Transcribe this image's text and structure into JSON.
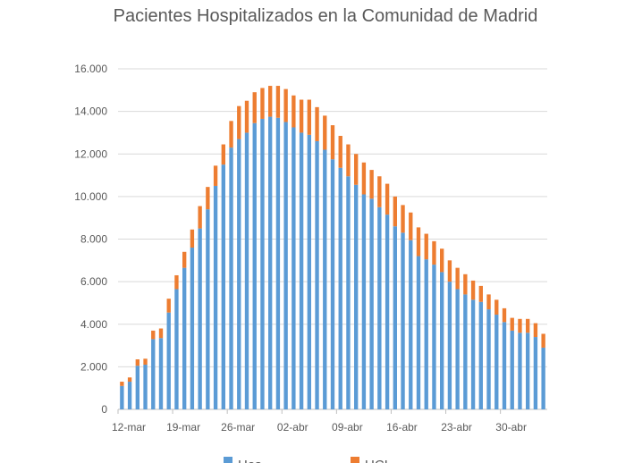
{
  "chart_data": {
    "type": "bar",
    "stacked": true,
    "title": "Pacientes Hospitalizados en la Comunidad de Madrid",
    "xlabel": "",
    "ylabel": "",
    "ylim": [
      0,
      16000
    ],
    "grid": true,
    "y_ticks": [
      "0",
      "2.000",
      "4.000",
      "6.000",
      "8.000",
      "10.000",
      "12.000",
      "14.000",
      "16.000"
    ],
    "y_tick_values": [
      0,
      2000,
      4000,
      6000,
      8000,
      10000,
      12000,
      14000,
      16000
    ],
    "x_tick_labels": [
      "12-mar",
      "19-mar",
      "26-mar",
      "02-abr",
      "09-abr",
      "16-abr",
      "23-abr",
      "30-abr"
    ],
    "categories": [
      "12-mar",
      "13-mar",
      "14-mar",
      "15-mar",
      "16-mar",
      "17-mar",
      "18-mar",
      "19-mar",
      "20-mar",
      "21-mar",
      "22-mar",
      "23-mar",
      "24-mar",
      "25-mar",
      "26-mar",
      "27-mar",
      "28-mar",
      "29-mar",
      "30-mar",
      "31-mar",
      "01-abr",
      "02-abr",
      "03-abr",
      "04-abr",
      "05-abr",
      "06-abr",
      "07-abr",
      "08-abr",
      "09-abr",
      "10-abr",
      "11-abr",
      "12-abr",
      "13-abr",
      "14-abr",
      "15-abr",
      "16-abr",
      "17-abr",
      "18-abr",
      "19-abr",
      "20-abr",
      "21-abr",
      "22-abr",
      "23-abr",
      "24-abr",
      "25-abr",
      "26-abr",
      "27-abr",
      "28-abr",
      "29-abr",
      "30-abr",
      "01-may",
      "02-may",
      "03-may",
      "04-may",
      "05-may"
    ],
    "series": [
      {
        "name": "Hos",
        "color": "#5b9bd5",
        "values": [
          1100,
          1300,
          2050,
          2100,
          3300,
          3350,
          4550,
          5650,
          6650,
          7600,
          8500,
          9400,
          10500,
          11500,
          12300,
          12700,
          13000,
          13450,
          13650,
          13750,
          13700,
          13500,
          13250,
          13000,
          12900,
          12600,
          12200,
          11750,
          11350,
          10950,
          10550,
          10100,
          9900,
          9500,
          9150,
          8600,
          8300,
          7950,
          7200,
          7050,
          6800,
          6450,
          6000,
          5650,
          5400,
          5150,
          5050,
          4700,
          4450,
          4100,
          3700,
          3600,
          3600,
          3400,
          2900
        ]
      },
      {
        "name": "UCI",
        "color": "#ed7d31",
        "values": [
          200,
          200,
          300,
          280,
          400,
          450,
          650,
          650,
          750,
          850,
          1050,
          1050,
          950,
          950,
          1250,
          1550,
          1500,
          1450,
          1450,
          1450,
          1500,
          1550,
          1500,
          1550,
          1650,
          1600,
          1600,
          1600,
          1500,
          1500,
          1450,
          1500,
          1350,
          1450,
          1450,
          1400,
          1300,
          1300,
          1350,
          1200,
          1100,
          1100,
          1000,
          1000,
          950,
          900,
          750,
          700,
          700,
          650,
          600,
          650,
          650,
          650,
          650
        ]
      }
    ],
    "legend": {
      "position": "bottom",
      "items": [
        "Hos",
        "UCI"
      ]
    }
  }
}
